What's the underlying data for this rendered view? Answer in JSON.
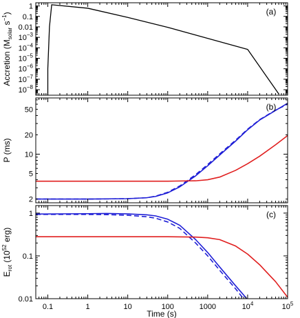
{
  "chart_data": [
    {
      "panel_label": "(a)",
      "type": "line",
      "xscale": "log",
      "yscale": "log",
      "xlim": [
        0.05,
        100000
      ],
      "ylim": [
        3e-09,
        2
      ],
      "ylabel": "Accretion (M",
      "ylabel_sub": "solar",
      "ylabel_tail": " s",
      "ylabel_sup": "−1",
      "ylabel_close": ")",
      "yticks": [
        {
          "v": 1,
          "label": "1"
        },
        {
          "v": 0.1,
          "label": "0.1"
        },
        {
          "v": 0.01,
          "label": "0.01"
        },
        {
          "v": 0.001,
          "base": "10",
          "exp": "−3"
        },
        {
          "v": 0.0001,
          "base": "10",
          "exp": "−4"
        },
        {
          "v": 1e-05,
          "base": "10",
          "exp": "−5"
        },
        {
          "v": 1e-06,
          "base": "10",
          "exp": "−6"
        },
        {
          "v": 1e-07,
          "base": "10",
          "exp": "−7"
        },
        {
          "v": 1e-08,
          "base": "10",
          "exp": "−8"
        }
      ],
      "series": [
        {
          "color": "#000000",
          "dash": false,
          "points": [
            [
              0.1,
              3e-09
            ],
            [
              0.1,
              1e-06
            ],
            [
              0.11,
              0.01
            ],
            [
              0.125,
              1.3
            ],
            [
              1,
              0.6
            ],
            [
              10,
              0.08
            ],
            [
              100,
              0.009
            ],
            [
              1000,
              0.0008
            ],
            [
              10000,
              7e-05
            ],
            [
              60000,
              4e-09
            ]
          ]
        }
      ]
    },
    {
      "panel_label": "(b)",
      "type": "line",
      "xscale": "log",
      "yscale": "log",
      "xlim": [
        0.05,
        100000
      ],
      "ylim": [
        1.75,
        75
      ],
      "ylabel": "P (ms)",
      "yticks": [
        {
          "v": 2,
          "label": "2"
        },
        {
          "v": 5,
          "label": "5"
        },
        {
          "v": 10,
          "label": "10"
        },
        {
          "v": 20,
          "label": "20"
        },
        {
          "v": 50,
          "label": "50"
        }
      ],
      "series": [
        {
          "color": "#1f1fd6",
          "dash": false,
          "points": [
            [
              0.05,
              2.0
            ],
            [
              1,
              2.0
            ],
            [
              10,
              2.03
            ],
            [
              30,
              2.1
            ],
            [
              50,
              2.2
            ],
            [
              100,
              2.5
            ],
            [
              200,
              3.1
            ],
            [
              500,
              4.6
            ],
            [
              1000,
              6.6
            ],
            [
              2000,
              9.7
            ],
            [
              5000,
              16
            ],
            [
              10000,
              24
            ],
            [
              20000,
              34
            ],
            [
              50000,
              48
            ],
            [
              100000,
              62
            ]
          ]
        },
        {
          "color": "#1f1fd6",
          "dash": true,
          "points": [
            [
              0.05,
              2.0
            ],
            [
              1,
              2.0
            ],
            [
              10,
              2.03
            ],
            [
              30,
              2.1
            ],
            [
              50,
              2.22
            ],
            [
              100,
              2.55
            ],
            [
              200,
              3.2
            ],
            [
              500,
              4.8
            ],
            [
              1000,
              6.9
            ],
            [
              2000,
              10.1
            ],
            [
              5000,
              16.5
            ],
            [
              10000,
              24.5
            ],
            [
              20000,
              34.5
            ],
            [
              50000,
              48.5
            ],
            [
              100000,
              60
            ]
          ]
        },
        {
          "color": "#e01e1e",
          "dash": false,
          "points": [
            [
              0.05,
              3.8
            ],
            [
              100,
              3.8
            ],
            [
              500,
              3.85
            ],
            [
              1000,
              4.0
            ],
            [
              2000,
              4.4
            ],
            [
              5000,
              5.6
            ],
            [
              10000,
              7.1
            ],
            [
              20000,
              9.3
            ],
            [
              50000,
              14
            ],
            [
              100000,
              19.5
            ]
          ]
        }
      ]
    },
    {
      "panel_label": "(c)",
      "type": "line",
      "xscale": "log",
      "yscale": "log",
      "xlim": [
        0.05,
        100000
      ],
      "ylim": [
        0.01,
        1.5
      ],
      "xlabel": "Time (s)",
      "ylabel_main": "E",
      "ylabel_sub": "rot",
      "ylabel_mid": " (10",
      "ylabel_sup": "52",
      "ylabel_tail": " erg)",
      "yticks": [
        {
          "v": 1,
          "label": "1"
        },
        {
          "v": 0.1,
          "label": "0.1"
        },
        {
          "v": 0.01,
          "label": "0.01"
        }
      ],
      "xticks": [
        {
          "v": 0.1,
          "label": "0.1"
        },
        {
          "v": 1,
          "label": "1"
        },
        {
          "v": 10,
          "label": "10"
        },
        {
          "v": 100,
          "label": "100"
        },
        {
          "v": 1000,
          "label": "1000"
        },
        {
          "v": 10000,
          "base": "10",
          "exp": "4"
        },
        {
          "v": 100000,
          "base": "10",
          "exp": "5"
        }
      ],
      "series": [
        {
          "color": "#1f1fd6",
          "dash": false,
          "points": [
            [
              0.05,
              0.95
            ],
            [
              1,
              0.97
            ],
            [
              3,
              0.98
            ],
            [
              10,
              0.96
            ],
            [
              30,
              0.91
            ],
            [
              50,
              0.86
            ],
            [
              100,
              0.72
            ],
            [
              200,
              0.52
            ],
            [
              500,
              0.24
            ],
            [
              1000,
              0.12
            ],
            [
              2000,
              0.055
            ],
            [
              5000,
              0.02
            ],
            [
              10000,
              0.0095
            ]
          ]
        },
        {
          "color": "#1f1fd6",
          "dash": true,
          "points": [
            [
              0.05,
              0.93
            ],
            [
              1,
              0.93
            ],
            [
              3,
              0.92
            ],
            [
              10,
              0.89
            ],
            [
              30,
              0.82
            ],
            [
              50,
              0.76
            ],
            [
              100,
              0.62
            ],
            [
              200,
              0.44
            ],
            [
              500,
              0.2
            ],
            [
              1000,
              0.1
            ],
            [
              2000,
              0.046
            ],
            [
              5000,
              0.017
            ],
            [
              8000,
              0.0098
            ]
          ]
        },
        {
          "color": "#e01e1e",
          "dash": false,
          "points": [
            [
              0.05,
              0.28
            ],
            [
              100,
              0.28
            ],
            [
              500,
              0.275
            ],
            [
              1000,
              0.265
            ],
            [
              2000,
              0.24
            ],
            [
              5000,
              0.17
            ],
            [
              10000,
              0.11
            ],
            [
              20000,
              0.062
            ],
            [
              50000,
              0.025
            ],
            [
              100000,
              0.0108
            ]
          ]
        }
      ]
    }
  ]
}
